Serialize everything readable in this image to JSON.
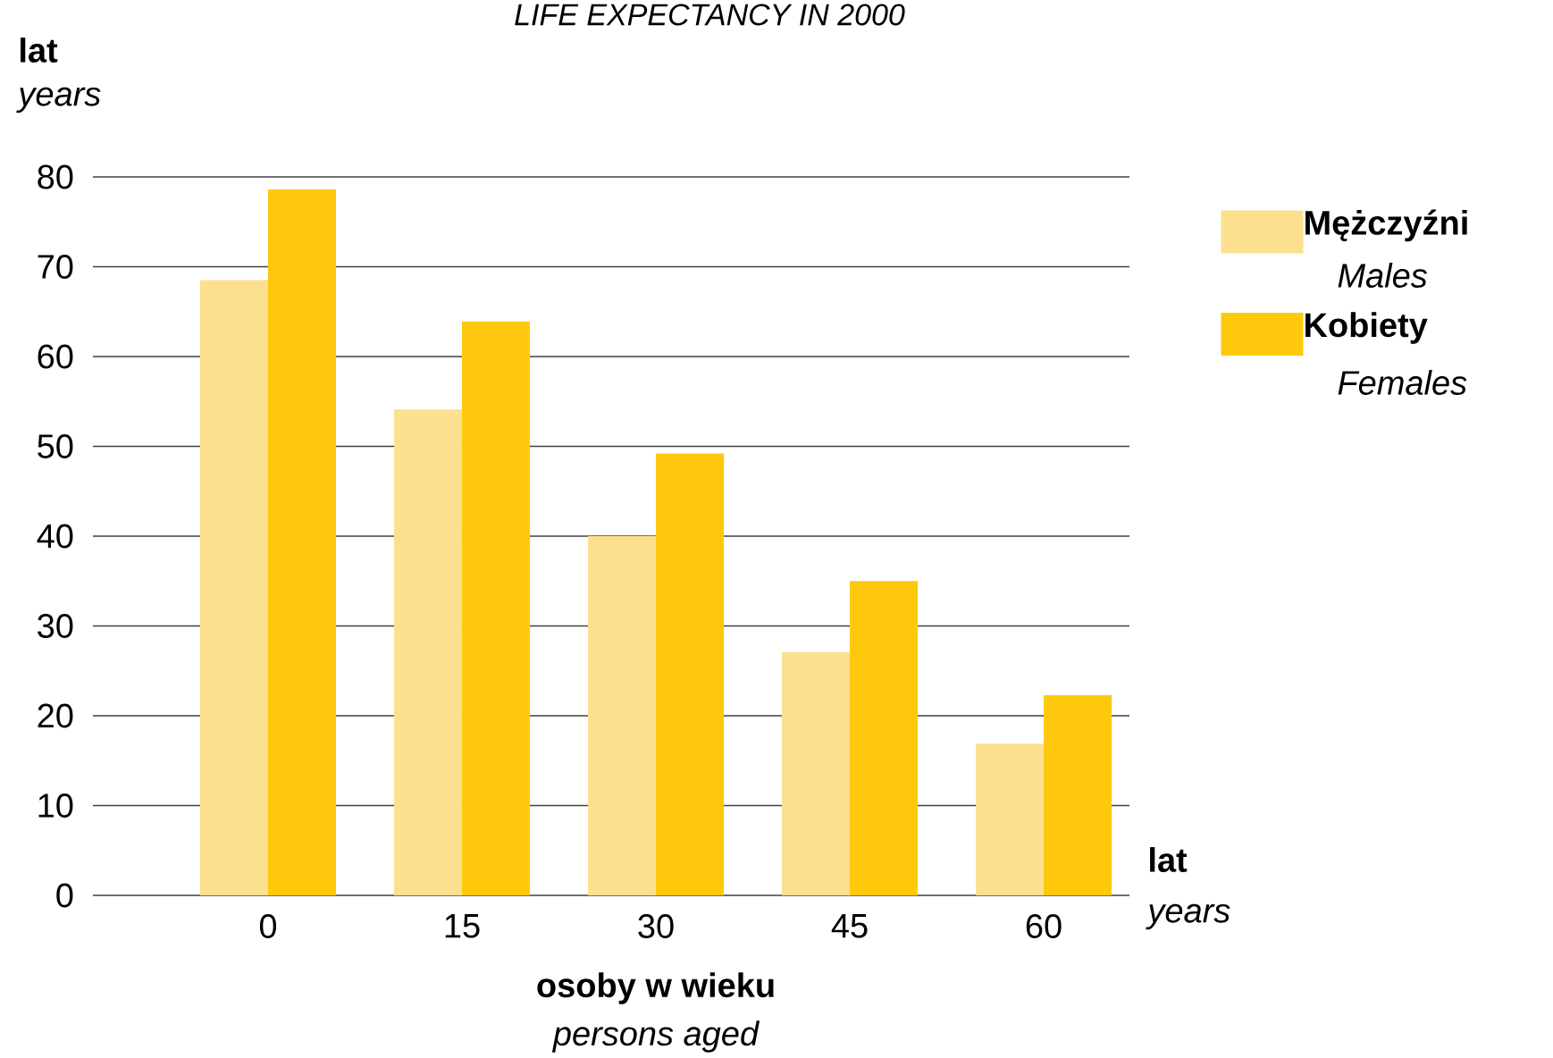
{
  "chart_data": {
    "type": "bar",
    "title": "LIFE EXPECTANCY IN 2000",
    "xlabel": "osoby w wieku",
    "categories": [
      "0",
      "15",
      "30",
      "45",
      "60"
    ],
    "series": [
      {
        "name": "Mężczyźni",
        "color": "#fce08f",
        "values": [
          68.5,
          54.1,
          40.0,
          27.1,
          16.9
        ]
      },
      {
        "name": "Kobiety",
        "color": "#fec90c",
        "values": [
          78.6,
          63.9,
          49.2,
          35.0,
          22.3
        ]
      }
    ],
    "ylim": [
      0,
      80
    ],
    "yticks": [
      0,
      10,
      20,
      30,
      40,
      50,
      60,
      70,
      80
    ],
    "grid": "y",
    "legend": "right",
    "annotations": [
      "lat",
      "years",
      "persons aged",
      "lat",
      "years",
      "Males",
      "Females"
    ]
  }
}
